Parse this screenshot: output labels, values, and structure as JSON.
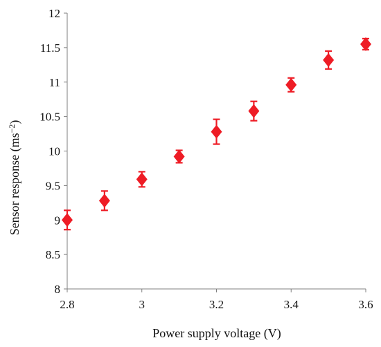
{
  "chart_data": {
    "type": "scatter",
    "xlabel": "Power supply voltage (V)",
    "ylabel_main": "Sensor response (ms",
    "ylabel_sup": "−2",
    "ylabel_end": ")",
    "xlim": [
      2.8,
      3.6
    ],
    "ylim": [
      8,
      12
    ],
    "x_ticks": [
      2.8,
      3.0,
      3.2,
      3.4,
      3.6
    ],
    "x_tick_labels": [
      "2.8",
      "3",
      "3.2",
      "3.4",
      "3.6"
    ],
    "y_ticks": [
      8,
      8.5,
      9,
      9.5,
      10,
      10.5,
      11,
      11.5,
      12
    ],
    "y_tick_labels": [
      "8",
      "8.5",
      "9",
      "9.5",
      "10",
      "10.5",
      "11",
      "11.5",
      "12"
    ],
    "grid": false,
    "marker": "diamond",
    "color": "#ee1c25",
    "series": [
      {
        "x": [
          2.8,
          2.9,
          3.0,
          3.1,
          3.2,
          3.3,
          3.4,
          3.5,
          3.6
        ],
        "y": [
          9.0,
          9.28,
          9.59,
          9.92,
          10.28,
          10.58,
          10.96,
          11.32,
          11.55
        ],
        "err": [
          0.14,
          0.14,
          0.11,
          0.09,
          0.18,
          0.14,
          0.1,
          0.13,
          0.08
        ]
      }
    ]
  }
}
